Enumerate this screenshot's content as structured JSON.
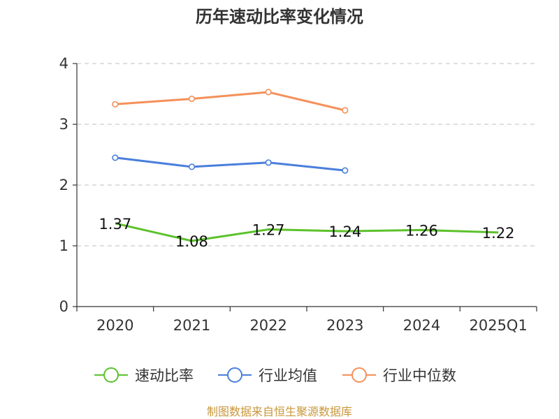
{
  "chart_data": {
    "type": "line",
    "title": "历年速动比率变化情况",
    "categories": [
      "2020",
      "2021",
      "2022",
      "2023",
      "2024",
      "2025Q1"
    ],
    "ylim": [
      0,
      4
    ],
    "yticks": [
      0,
      1,
      2,
      3,
      4
    ],
    "grid": true,
    "legend_position": "bottom",
    "series": [
      {
        "name": "速动比率",
        "color": "#5cc12b",
        "values": [
          1.37,
          1.08,
          1.27,
          1.24,
          1.26,
          1.22
        ],
        "data_labels": [
          "1.37",
          "1.08",
          "1.27",
          "1.24",
          "1.26",
          "1.22"
        ],
        "show_markers": false
      },
      {
        "name": "行业均值",
        "color": "#4a7fdc",
        "values": [
          2.45,
          2.3,
          2.37,
          2.24,
          null,
          null
        ],
        "show_markers": true
      },
      {
        "name": "行业中位数",
        "color": "#f5905a",
        "values": [
          3.33,
          3.42,
          3.53,
          3.23,
          null,
          null
        ],
        "show_markers": true
      }
    ]
  },
  "source_text": "制图数据来自恒生聚源数据库"
}
